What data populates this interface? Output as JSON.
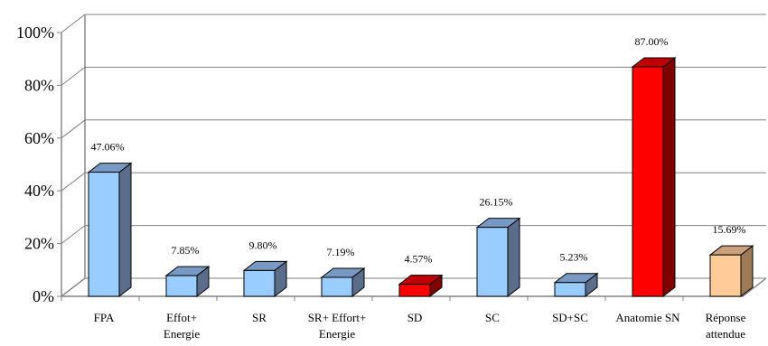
{
  "chart_data": {
    "type": "bar",
    "categories": [
      [
        "FPA"
      ],
      [
        "Effot+",
        "Energie"
      ],
      [
        "SR"
      ],
      [
        "SR+ Effort+",
        "Energie"
      ],
      [
        "SD"
      ],
      [
        "SC"
      ],
      [
        "SD+SC"
      ],
      [
        "Anatomie SN"
      ],
      [
        "Réponse",
        "attendue"
      ]
    ],
    "values": [
      47.06,
      7.85,
      9.8,
      7.19,
      4.57,
      26.15,
      5.23,
      87.0,
      15.69
    ],
    "data_labels": [
      "47.06%",
      "7.85%",
      "9.80%",
      "7.19%",
      "4.57%",
      "26.15%",
      "5.23%",
      "87.00%",
      "15.69%"
    ],
    "bar_colors": [
      "blue",
      "blue",
      "blue",
      "blue",
      "red",
      "blue",
      "blue",
      "red",
      "peach"
    ],
    "palette": {
      "blue": {
        "front": "#99CCFF",
        "side": "#5A6E8C",
        "top": "#7899C4"
      },
      "red": {
        "front": "#FF0000",
        "side": "#800000",
        "top": "#C00000"
      },
      "peach": {
        "front": "#FFCC99",
        "side": "#9E7A56",
        "top": "#C9A27C"
      }
    },
    "y_ticks": [
      "0%",
      "20%",
      "40%",
      "60%",
      "80%",
      "100%"
    ],
    "ylim": [
      0,
      100
    ],
    "grid": true,
    "legend": "none",
    "title": "",
    "xlabel": "",
    "ylabel": ""
  }
}
